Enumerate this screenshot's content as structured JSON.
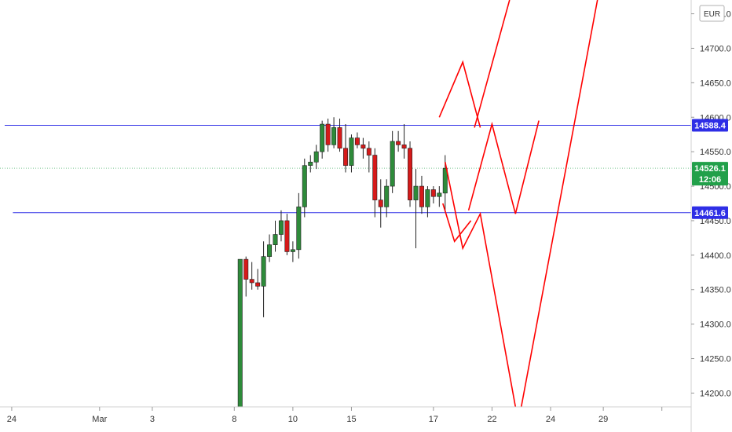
{
  "currency": "EUR",
  "chart_data": {
    "type": "candlestick",
    "y_axis": {
      "ylim": [
        14180,
        14770
      ],
      "ticks": [
        14200.0,
        14250.0,
        14300.0,
        14350.0,
        14400.0,
        14450.0,
        14500.0,
        14550.0,
        14600.0,
        14650.0,
        14700.0,
        14750.0
      ],
      "tick_labels": [
        "14200.0",
        "14250.0",
        "14300.0",
        "14350.0",
        "14400.0",
        "14450.0",
        "14500.0",
        "14550.0",
        "14600.0",
        "14650.0",
        "14700.0",
        "14750.0"
      ]
    },
    "x_axis": {
      "xlim": [
        -1,
        58
      ],
      "ticks": [
        0,
        7.5,
        12,
        19,
        24,
        29,
        36,
        41,
        46,
        50.5,
        55.5
      ],
      "tick_labels": [
        "24",
        "Mar",
        "3",
        "8",
        "10",
        "15",
        "17",
        "22",
        "24",
        "29",
        ""
      ]
    },
    "horizontal_lines": [
      {
        "price": 14588.4,
        "label": "14588.4",
        "color": "#2e2ee6",
        "x_start": -0.6
      },
      {
        "price": 14461.6,
        "label": "14461.6",
        "color": "#2e2ee6",
        "x_start": 0.1
      }
    ],
    "last_price": {
      "value": 14526.1,
      "label": "14526.1",
      "countdown": "12:06",
      "color": "#22a04a"
    },
    "candles": [
      {
        "x": 19.5,
        "o": 14180,
        "h": 14394,
        "l": 14180,
        "c": 14394
      },
      {
        "x": 20.0,
        "o": 14394,
        "h": 14398,
        "l": 14340,
        "c": 14365
      },
      {
        "x": 20.5,
        "o": 14365,
        "h": 14390,
        "l": 14350,
        "c": 14360
      },
      {
        "x": 21.0,
        "o": 14360,
        "h": 14380,
        "l": 14350,
        "c": 14355
      },
      {
        "x": 21.5,
        "o": 14355,
        "h": 14420,
        "l": 14310,
        "c": 14398
      },
      {
        "x": 22.0,
        "o": 14398,
        "h": 14430,
        "l": 14390,
        "c": 14415
      },
      {
        "x": 22.5,
        "o": 14415,
        "h": 14450,
        "l": 14405,
        "c": 14430
      },
      {
        "x": 23.0,
        "o": 14430,
        "h": 14465,
        "l": 14420,
        "c": 14450
      },
      {
        "x": 23.5,
        "o": 14450,
        "h": 14460,
        "l": 14400,
        "c": 14405
      },
      {
        "x": 24.0,
        "o": 14405,
        "h": 14420,
        "l": 14390,
        "c": 14408
      },
      {
        "x": 24.5,
        "o": 14408,
        "h": 14490,
        "l": 14395,
        "c": 14470
      },
      {
        "x": 25.0,
        "o": 14470,
        "h": 14540,
        "l": 14455,
        "c": 14530
      },
      {
        "x": 25.5,
        "o": 14530,
        "h": 14545,
        "l": 14520,
        "c": 14535
      },
      {
        "x": 26.0,
        "o": 14535,
        "h": 14560,
        "l": 14525,
        "c": 14550
      },
      {
        "x": 26.5,
        "o": 14550,
        "h": 14595,
        "l": 14540,
        "c": 14590
      },
      {
        "x": 27.0,
        "o": 14590,
        "h": 14598,
        "l": 14550,
        "c": 14560
      },
      {
        "x": 27.5,
        "o": 14560,
        "h": 14600,
        "l": 14555,
        "c": 14585
      },
      {
        "x": 28.0,
        "o": 14585,
        "h": 14598,
        "l": 14550,
        "c": 14555
      },
      {
        "x": 28.5,
        "o": 14555,
        "h": 14590,
        "l": 14520,
        "c": 14530
      },
      {
        "x": 29.0,
        "o": 14530,
        "h": 14575,
        "l": 14520,
        "c": 14570
      },
      {
        "x": 29.5,
        "o": 14570,
        "h": 14578,
        "l": 14555,
        "c": 14560
      },
      {
        "x": 30.0,
        "o": 14560,
        "h": 14570,
        "l": 14540,
        "c": 14555
      },
      {
        "x": 30.5,
        "o": 14555,
        "h": 14565,
        "l": 14520,
        "c": 14545
      },
      {
        "x": 31.0,
        "o": 14545,
        "h": 14555,
        "l": 14455,
        "c": 14480
      },
      {
        "x": 31.5,
        "o": 14480,
        "h": 14510,
        "l": 14440,
        "c": 14470
      },
      {
        "x": 32.0,
        "o": 14470,
        "h": 14510,
        "l": 14455,
        "c": 14500
      },
      {
        "x": 32.5,
        "o": 14500,
        "h": 14580,
        "l": 14490,
        "c": 14565
      },
      {
        "x": 33.0,
        "o": 14565,
        "h": 14580,
        "l": 14550,
        "c": 14560
      },
      {
        "x": 33.5,
        "o": 14560,
        "h": 14590,
        "l": 14540,
        "c": 14555
      },
      {
        "x": 34.0,
        "o": 14555,
        "h": 14565,
        "l": 14470,
        "c": 14480
      },
      {
        "x": 34.5,
        "o": 14480,
        "h": 14525,
        "l": 14410,
        "c": 14500
      },
      {
        "x": 35.0,
        "o": 14500,
        "h": 14515,
        "l": 14460,
        "c": 14470
      },
      {
        "x": 35.5,
        "o": 14470,
        "h": 14500,
        "l": 14455,
        "c": 14495
      },
      {
        "x": 36.0,
        "o": 14495,
        "h": 14500,
        "l": 14475,
        "c": 14485
      },
      {
        "x": 36.5,
        "o": 14485,
        "h": 14500,
        "l": 14470,
        "c": 14490
      },
      {
        "x": 37.0,
        "o": 14490,
        "h": 14545,
        "l": 14465,
        "c": 14526.1
      }
    ],
    "forecast_path": {
      "color": "#ff0000",
      "points": [
        [
          37.0,
          14535
        ],
        [
          38.5,
          14410
        ],
        [
          40.0,
          14460
        ],
        [
          43.0,
          14180
        ]
      ]
    },
    "annotations": [
      {
        "kind": "zigzag",
        "color": "#ff0000",
        "points": [
          [
            36.8,
            14475
          ],
          [
            37.8,
            14420
          ],
          [
            39.2,
            14450
          ]
        ]
      },
      {
        "kind": "zigzag",
        "color": "#ff0000",
        "points": [
          [
            36.5,
            14600
          ],
          [
            38.5,
            14680
          ],
          [
            40.0,
            14585
          ]
        ]
      },
      {
        "kind": "zigzag",
        "color": "#ff0000",
        "points": [
          [
            39.0,
            14465
          ],
          [
            41.0,
            14590
          ],
          [
            43.0,
            14460
          ],
          [
            45.0,
            14595
          ]
        ]
      },
      {
        "kind": "line",
        "color": "#ff0000",
        "points": [
          [
            39.5,
            14585
          ],
          [
            42.5,
            14770
          ]
        ]
      },
      {
        "kind": "line",
        "color": "#ff0000",
        "points": [
          [
            43.5,
            14180
          ],
          [
            50.0,
            14770
          ]
        ]
      }
    ]
  }
}
